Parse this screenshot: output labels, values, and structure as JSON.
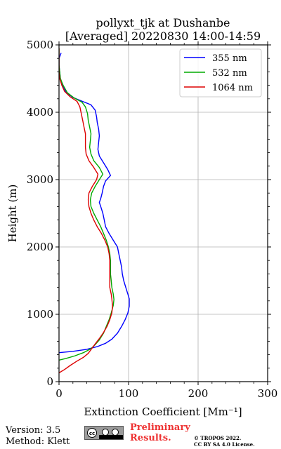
{
  "chart_data": {
    "type": "line",
    "title": "pollyxt_tjk at Dushanbe",
    "subtitle": "[Averaged] 20220830 14:00-14:59",
    "xlabel": "Extinction Coefficient [Mm⁻¹]",
    "ylabel": "Height (m)",
    "xlim": [
      0,
      300
    ],
    "ylim": [
      0,
      5000
    ],
    "xticks": [
      "0",
      "100",
      "200",
      "300"
    ],
    "yticks": [
      "0",
      "1000",
      "2000",
      "3000",
      "4000",
      "5000"
    ],
    "grid": true,
    "legend_position": "top-right",
    "series": [
      {
        "name": "355 nm",
        "color": "#0000ff",
        "points": [
          [
            0,
            430
          ],
          [
            20,
            450
          ],
          [
            40,
            480
          ],
          [
            55,
            520
          ],
          [
            67,
            570
          ],
          [
            76,
            630
          ],
          [
            84,
            720
          ],
          [
            90,
            820
          ],
          [
            95,
            920
          ],
          [
            99,
            1020
          ],
          [
            101,
            1120
          ],
          [
            101,
            1230
          ],
          [
            99,
            1300
          ],
          [
            96,
            1400
          ],
          [
            93,
            1500
          ],
          [
            91,
            1600
          ],
          [
            90,
            1700
          ],
          [
            88,
            1800
          ],
          [
            86,
            1900
          ],
          [
            84,
            2000
          ],
          [
            78,
            2100
          ],
          [
            72,
            2200
          ],
          [
            67,
            2300
          ],
          [
            65,
            2400
          ],
          [
            63,
            2500
          ],
          [
            60,
            2600
          ],
          [
            58,
            2660
          ],
          [
            60,
            2720
          ],
          [
            62,
            2800
          ],
          [
            64,
            2900
          ],
          [
            67,
            2980
          ],
          [
            74,
            3060
          ],
          [
            70,
            3150
          ],
          [
            64,
            3250
          ],
          [
            58,
            3350
          ],
          [
            56,
            3450
          ],
          [
            57,
            3550
          ],
          [
            58,
            3650
          ],
          [
            57,
            3750
          ],
          [
            55,
            3850
          ],
          [
            54,
            3930
          ],
          [
            52,
            4030
          ],
          [
            46,
            4110
          ],
          [
            34,
            4160
          ],
          [
            20,
            4220
          ],
          [
            10,
            4300
          ],
          [
            5,
            4400
          ],
          [
            2,
            4500
          ],
          [
            1,
            4600
          ],
          [
            0,
            4700
          ],
          [
            0,
            4800
          ],
          [
            3,
            4880
          ]
        ]
      },
      {
        "name": "532 nm",
        "color": "#00aa00",
        "points": [
          [
            0,
            320
          ],
          [
            10,
            345
          ],
          [
            22,
            380
          ],
          [
            35,
            430
          ],
          [
            46,
            490
          ],
          [
            52,
            550
          ],
          [
            58,
            620
          ],
          [
            64,
            720
          ],
          [
            68,
            820
          ],
          [
            72,
            920
          ],
          [
            75,
            1020
          ],
          [
            78,
            1130
          ],
          [
            79,
            1220
          ],
          [
            78,
            1300
          ],
          [
            76,
            1400
          ],
          [
            75,
            1500
          ],
          [
            74,
            1600
          ],
          [
            74,
            1700
          ],
          [
            74,
            1800
          ],
          [
            73,
            1900
          ],
          [
            71,
            2000
          ],
          [
            68,
            2100
          ],
          [
            64,
            2200
          ],
          [
            60,
            2300
          ],
          [
            55,
            2400
          ],
          [
            50,
            2500
          ],
          [
            46,
            2600
          ],
          [
            45,
            2700
          ],
          [
            47,
            2800
          ],
          [
            52,
            2900
          ],
          [
            58,
            3000
          ],
          [
            63,
            3080
          ],
          [
            58,
            3180
          ],
          [
            50,
            3280
          ],
          [
            46,
            3380
          ],
          [
            44,
            3480
          ],
          [
            45,
            3580
          ],
          [
            46,
            3680
          ],
          [
            44,
            3780
          ],
          [
            42,
            3880
          ],
          [
            41,
            3980
          ],
          [
            38,
            4080
          ],
          [
            33,
            4150
          ],
          [
            22,
            4210
          ],
          [
            12,
            4290
          ],
          [
            6,
            4400
          ],
          [
            2,
            4500
          ],
          [
            1,
            4600
          ],
          [
            0,
            4700
          ],
          [
            0,
            4800
          ],
          [
            0,
            4950
          ]
        ]
      },
      {
        "name": "1064 nm",
        "color": "#dd0000",
        "points": [
          [
            0,
            130
          ],
          [
            8,
            180
          ],
          [
            16,
            240
          ],
          [
            25,
            300
          ],
          [
            35,
            360
          ],
          [
            42,
            420
          ],
          [
            47,
            490
          ],
          [
            52,
            560
          ],
          [
            58,
            640
          ],
          [
            64,
            730
          ],
          [
            69,
            820
          ],
          [
            73,
            920
          ],
          [
            76,
            1020
          ],
          [
            77,
            1120
          ],
          [
            76,
            1230
          ],
          [
            75,
            1300
          ],
          [
            73,
            1400
          ],
          [
            73,
            1500
          ],
          [
            73,
            1600
          ],
          [
            73,
            1700
          ],
          [
            73,
            1800
          ],
          [
            72,
            1900
          ],
          [
            70,
            2000
          ],
          [
            66,
            2100
          ],
          [
            61,
            2200
          ],
          [
            55,
            2300
          ],
          [
            50,
            2400
          ],
          [
            46,
            2500
          ],
          [
            43,
            2600
          ],
          [
            42,
            2700
          ],
          [
            43,
            2800
          ],
          [
            48,
            2900
          ],
          [
            54,
            3000
          ],
          [
            56,
            3080
          ],
          [
            50,
            3180
          ],
          [
            43,
            3280
          ],
          [
            39,
            3380
          ],
          [
            38,
            3480
          ],
          [
            38,
            3580
          ],
          [
            38,
            3680
          ],
          [
            36,
            3780
          ],
          [
            34,
            3880
          ],
          [
            32,
            3980
          ],
          [
            30,
            4080
          ],
          [
            26,
            4160
          ],
          [
            16,
            4230
          ],
          [
            8,
            4310
          ],
          [
            4,
            4400
          ],
          [
            1,
            4500
          ],
          [
            0,
            4600
          ],
          [
            0,
            4700
          ],
          [
            0,
            4800
          ],
          [
            0,
            4950
          ]
        ]
      }
    ]
  },
  "footer": {
    "version": "Version: 3.5",
    "method": "Method: Klett",
    "preliminary_line1": "Preliminary",
    "preliminary_line2": "Results.",
    "copyright_line1": "© TROPOS 2022.",
    "copyright_line2": "CC BY SA 4.0 License."
  }
}
